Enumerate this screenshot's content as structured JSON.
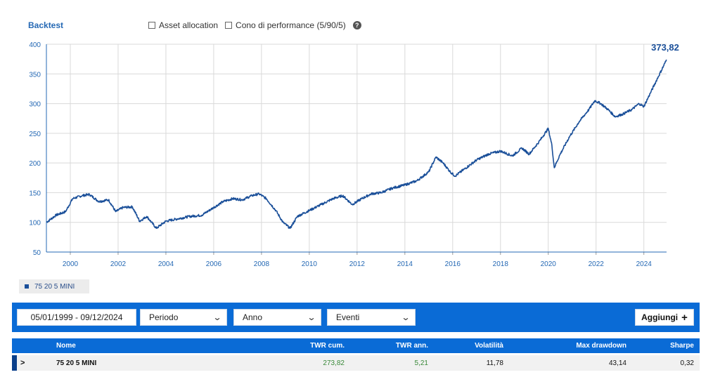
{
  "header": {
    "title": "Backtest",
    "options": [
      {
        "label": "Asset allocation",
        "checked": false
      },
      {
        "label": "Cono di performance (5/90/5)",
        "checked": false
      }
    ],
    "help_icon": "question-circle-icon"
  },
  "chart_data": {
    "type": "line",
    "xlabel": "",
    "ylabel": "",
    "ylim": [
      50,
      400
    ],
    "xlim": [
      1999.0,
      2024.95
    ],
    "y_ticks": [
      "50",
      "100",
      "150",
      "200",
      "250",
      "300",
      "350",
      "400"
    ],
    "x_ticks": [
      "2000",
      "2002",
      "2004",
      "2006",
      "2008",
      "2010",
      "2012",
      "2014",
      "2016",
      "2018",
      "2020",
      "2022",
      "2024"
    ],
    "grid": true,
    "end_label": "373,82",
    "series": [
      {
        "name": "75 20 5 MINI",
        "color": "#1a4f99",
        "x": [
          1999.0,
          1999.4,
          1999.8,
          2000.1,
          2000.5,
          2000.8,
          2001.2,
          2001.6,
          2001.9,
          2002.2,
          2002.6,
          2002.9,
          2003.2,
          2003.6,
          2004.0,
          2004.5,
          2005.0,
          2005.5,
          2006.0,
          2006.4,
          2006.8,
          2007.2,
          2007.6,
          2007.9,
          2008.2,
          2008.6,
          2008.9,
          2009.2,
          2009.5,
          2010.0,
          2010.5,
          2011.0,
          2011.4,
          2011.8,
          2012.2,
          2012.6,
          2013.0,
          2013.5,
          2014.0,
          2014.5,
          2015.0,
          2015.3,
          2015.6,
          2015.9,
          2016.1,
          2016.5,
          2017.0,
          2017.5,
          2018.0,
          2018.5,
          2018.9,
          2019.2,
          2019.6,
          2020.0,
          2020.15,
          2020.25,
          2020.5,
          2020.9,
          2021.3,
          2021.7,
          2021.95,
          2022.2,
          2022.5,
          2022.8,
          2023.1,
          2023.5,
          2023.8,
          2024.0,
          2024.3,
          2024.6,
          2024.95
        ],
        "values": [
          100,
          112,
          118,
          140,
          145,
          147,
          135,
          138,
          118,
          125,
          126,
          102,
          110,
          90,
          102,
          106,
          110,
          112,
          125,
          135,
          140,
          138,
          145,
          148,
          140,
          120,
          100,
          90,
          110,
          120,
          130,
          140,
          145,
          130,
          140,
          148,
          150,
          158,
          163,
          170,
          185,
          210,
          200,
          185,
          178,
          190,
          205,
          215,
          220,
          212,
          225,
          215,
          235,
          258,
          230,
          192,
          215,
          245,
          270,
          290,
          305,
          300,
          290,
          278,
          282,
          290,
          300,
          295,
          320,
          345,
          373.82
        ]
      }
    ]
  },
  "legend": {
    "series_label": "75 20 5 MINI"
  },
  "toolbar": {
    "date_range": "05/01/1999 - 09/12/2024",
    "selects": [
      "Periodo",
      "Anno",
      "Eventi"
    ],
    "add_label": "Aggiungi"
  },
  "table": {
    "columns": [
      "Nome",
      "TWR cum.",
      "TWR ann.",
      "Volatilità",
      "Max drawdown",
      "Sharpe"
    ],
    "rows": [
      {
        "nome": "75 20 5 MINI",
        "twr_cum": "273,82",
        "twr_ann": "5,21",
        "volatilita": "11,78",
        "max_drawdown": "43,14",
        "sharpe": "0,32"
      }
    ]
  },
  "colors": {
    "accent": "#0a6bd6",
    "series": "#1a4f99",
    "positive": "#3a8a3a"
  }
}
